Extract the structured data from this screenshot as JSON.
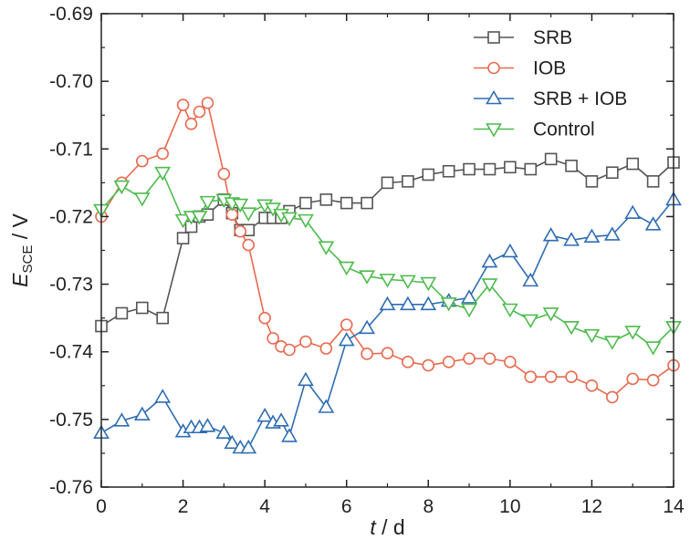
{
  "chart_data": {
    "type": "line",
    "xlabel": {
      "var": "t",
      "unit": " / d"
    },
    "ylabel": {
      "var": "E",
      "sub": "SCE",
      "unit": " / V"
    },
    "xlim": [
      0,
      14
    ],
    "ylim": [
      -0.76,
      -0.69
    ],
    "xticks": [
      0,
      2,
      4,
      6,
      8,
      10,
      12,
      14
    ],
    "yticks": [
      -0.76,
      -0.75,
      -0.74,
      -0.73,
      -0.72,
      -0.71,
      -0.7,
      -0.69
    ],
    "xtick_labels": [
      "0",
      "2",
      "4",
      "6",
      "8",
      "10",
      "12",
      "14"
    ],
    "ytick_labels": [
      "-0.76",
      "-0.75",
      "-0.74",
      "-0.73",
      "-0.72",
      "-0.71",
      "-0.70",
      "-0.69"
    ],
    "legend_position": "top-right",
    "grid": false,
    "series": [
      {
        "name": "SRB",
        "marker": "square",
        "color": "#555555",
        "x": [
          0,
          0.5,
          1,
          1.5,
          2,
          2.2,
          2.4,
          2.6,
          3,
          3.2,
          3.4,
          3.6,
          4,
          4.2,
          4.4,
          4.6,
          5,
          5.5,
          6,
          6.5,
          7,
          7.5,
          8,
          8.5,
          9,
          9.5,
          10,
          10.5,
          11,
          11.5,
          12,
          12.5,
          13,
          13.5,
          14
        ],
        "y": [
          -0.7362,
          -0.7343,
          -0.7335,
          -0.735,
          -0.7232,
          -0.7215,
          -0.72,
          -0.7197,
          -0.7175,
          -0.7195,
          -0.722,
          -0.722,
          -0.7202,
          -0.7202,
          -0.7202,
          -0.7192,
          -0.718,
          -0.7175,
          -0.718,
          -0.718,
          -0.715,
          -0.7148,
          -0.7138,
          -0.7133,
          -0.713,
          -0.713,
          -0.7127,
          -0.713,
          -0.7115,
          -0.7125,
          -0.7148,
          -0.7135,
          -0.7122,
          -0.7148,
          -0.712
        ]
      },
      {
        "name": "IOB",
        "marker": "circle",
        "color": "#e86a50",
        "x": [
          0,
          0.5,
          1,
          1.5,
          2,
          2.2,
          2.4,
          2.6,
          3,
          3.2,
          3.4,
          3.6,
          4,
          4.2,
          4.4,
          4.6,
          5,
          5.5,
          6,
          6.5,
          7,
          7.5,
          8,
          8.5,
          9,
          9.5,
          10,
          10.5,
          11,
          11.5,
          12,
          12.5,
          13,
          13.5,
          14
        ],
        "y": [
          -0.72,
          -0.715,
          -0.7118,
          -0.7107,
          -0.7035,
          -0.7063,
          -0.7045,
          -0.7032,
          -0.7137,
          -0.7197,
          -0.7222,
          -0.7242,
          -0.735,
          -0.738,
          -0.7392,
          -0.7397,
          -0.7385,
          -0.7395,
          -0.736,
          -0.7403,
          -0.7402,
          -0.7415,
          -0.742,
          -0.7415,
          -0.741,
          -0.741,
          -0.7415,
          -0.7437,
          -0.7437,
          -0.7437,
          -0.745,
          -0.7467,
          -0.744,
          -0.7442,
          -0.742
        ]
      },
      {
        "name": "SRB + IOB",
        "marker": "triangle-up",
        "color": "#2f6db3",
        "x": [
          0,
          0.5,
          1,
          1.5,
          2,
          2.2,
          2.4,
          2.6,
          3,
          3.2,
          3.4,
          3.6,
          4,
          4.2,
          4.4,
          4.6,
          5,
          5.5,
          6,
          6.5,
          7,
          7.5,
          8,
          8.5,
          9,
          9.5,
          10,
          10.5,
          11,
          11.5,
          12,
          12.5,
          13,
          13.5,
          14
        ],
        "y": [
          -0.752,
          -0.7502,
          -0.7493,
          -0.7467,
          -0.7518,
          -0.7512,
          -0.7512,
          -0.751,
          -0.752,
          -0.7535,
          -0.7542,
          -0.7542,
          -0.7495,
          -0.7505,
          -0.7502,
          -0.7525,
          -0.7442,
          -0.7482,
          -0.7383,
          -0.7365,
          -0.733,
          -0.733,
          -0.733,
          -0.7325,
          -0.732,
          -0.7267,
          -0.7252,
          -0.7295,
          -0.7228,
          -0.7235,
          -0.723,
          -0.7227,
          -0.7195,
          -0.7212,
          -0.7175
        ]
      },
      {
        "name": "Control",
        "marker": "triangle-down",
        "color": "#4dbb4d",
        "x": [
          0,
          0.5,
          1,
          1.5,
          2,
          2.2,
          2.4,
          2.6,
          3,
          3.2,
          3.4,
          3.6,
          4,
          4.2,
          4.4,
          4.6,
          5,
          5.5,
          6,
          6.5,
          7,
          7.5,
          8,
          8.5,
          9,
          9.5,
          10,
          10.5,
          11,
          11.5,
          12,
          12.5,
          13,
          13.5,
          14
        ],
        "y": [
          -0.719,
          -0.7155,
          -0.7173,
          -0.7135,
          -0.7205,
          -0.72,
          -0.72,
          -0.7178,
          -0.7175,
          -0.718,
          -0.7182,
          -0.7195,
          -0.7183,
          -0.7188,
          -0.7197,
          -0.7202,
          -0.7205,
          -0.7245,
          -0.7275,
          -0.7288,
          -0.7293,
          -0.7295,
          -0.7298,
          -0.7328,
          -0.7337,
          -0.73,
          -0.7337,
          -0.7353,
          -0.7343,
          -0.7363,
          -0.7375,
          -0.7385,
          -0.737,
          -0.7393,
          -0.7363
        ]
      }
    ]
  }
}
